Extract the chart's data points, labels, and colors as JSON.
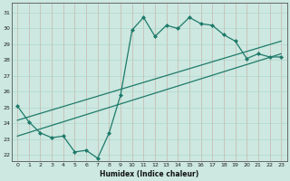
{
  "xlabel": "Humidex (Indice chaleur)",
  "bg_color": "#cce8e0",
  "grid_color": "#aad4c8",
  "line_color": "#1e7a6a",
  "xlim": [
    -0.5,
    23.5
  ],
  "ylim": [
    21.6,
    31.6
  ],
  "xticks": [
    0,
    1,
    2,
    3,
    4,
    5,
    6,
    7,
    8,
    9,
    10,
    11,
    12,
    13,
    14,
    15,
    16,
    17,
    18,
    19,
    20,
    21,
    22,
    23
  ],
  "yticks": [
    22,
    23,
    24,
    25,
    26,
    27,
    28,
    29,
    30,
    31
  ],
  "data_x": [
    0,
    1,
    2,
    3,
    4,
    5,
    6,
    7,
    8,
    9,
    10,
    11,
    12,
    13,
    14,
    15,
    16,
    17,
    18,
    19,
    20,
    21,
    22,
    23
  ],
  "data_y": [
    25.1,
    24.1,
    23.4,
    23.1,
    23.2,
    22.2,
    22.3,
    21.8,
    23.4,
    25.8,
    29.9,
    30.7,
    29.5,
    30.2,
    30.0,
    30.7,
    30.3,
    30.2,
    29.6,
    29.2,
    28.1,
    28.4,
    28.2,
    28.2
  ],
  "line1_x": [
    0,
    23
  ],
  "line1_y": [
    23.2,
    28.4
  ],
  "line2_x": [
    0,
    23
  ],
  "line2_y": [
    24.2,
    29.2
  ]
}
